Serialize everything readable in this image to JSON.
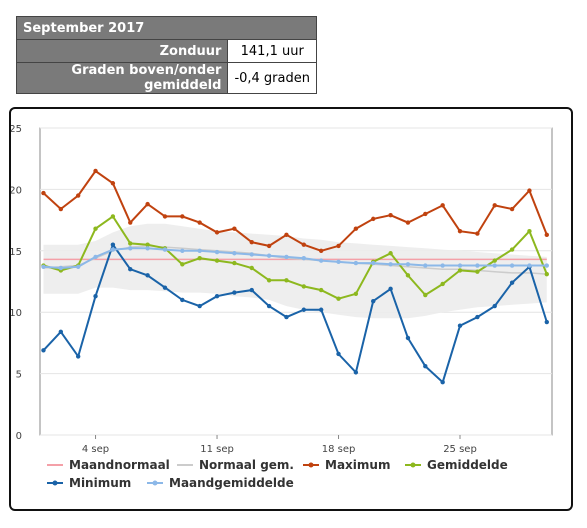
{
  "summary": {
    "title": "September 2017",
    "rows": [
      {
        "label": "Zonduur",
        "value": "141,1 uur"
      },
      {
        "label": "Graden boven/onder gemiddeld",
        "value": "-0,4 graden"
      }
    ]
  },
  "chart_data": {
    "type": "line",
    "title": "",
    "xlabel": "",
    "ylabel": "",
    "ylim": [
      0,
      25
    ],
    "yticks": [
      0,
      5,
      10,
      15,
      20,
      25
    ],
    "x": [
      1,
      2,
      3,
      4,
      5,
      6,
      7,
      8,
      9,
      10,
      11,
      12,
      13,
      14,
      15,
      16,
      17,
      18,
      19,
      20,
      21,
      22,
      23,
      24,
      25,
      26,
      27,
      28,
      29,
      30
    ],
    "xticks": [
      {
        "day": 4,
        "label": "4 sep"
      },
      {
        "day": 11,
        "label": "11 sep"
      },
      {
        "day": 18,
        "label": "18 sep"
      },
      {
        "day": 25,
        "label": "25 sep"
      }
    ],
    "grid": true,
    "band": {
      "name": "Normaal gem.",
      "upper": [
        15.5,
        15.5,
        15.5,
        15.8,
        16.5,
        17,
        17.2,
        17.2,
        17.0,
        16.8,
        16.6,
        16.5,
        16.4,
        16.3,
        16.2,
        16.0,
        15.9,
        15.7,
        15.6,
        15.5,
        15.4,
        15.3,
        15.2,
        15.1,
        15.0,
        14.9,
        14.8,
        14.7,
        14.6,
        14.5
      ],
      "lower": [
        11.5,
        11.5,
        11.5,
        12.0,
        12.0,
        11.8,
        11.8,
        11.7,
        11.6,
        11.6,
        11.5,
        11.3,
        11.2,
        11.0,
        10.5,
        10.2,
        10.0,
        9.8,
        9.6,
        9.5,
        9.5,
        9.5,
        9.7,
        10.0,
        10.2,
        10.4,
        10.5,
        10.6,
        10.7,
        10.8
      ]
    },
    "series": [
      {
        "name": "Maandnormaal",
        "color": "#f4a0a8",
        "values": [
          14.3,
          14.3,
          14.3,
          14.3,
          14.3,
          14.3,
          14.3,
          14.3,
          14.3,
          14.3,
          14.3,
          14.3,
          14.3,
          14.3,
          14.3,
          14.3,
          14.3,
          14.3,
          14.3,
          14.3,
          14.3,
          14.3,
          14.3,
          14.3,
          14.3,
          14.3,
          14.3,
          14.3,
          14.3,
          14.3
        ],
        "markers": false
      },
      {
        "name": "Normaal gem.",
        "color": "#cccccc",
        "values": [
          13.6,
          13.7,
          13.8,
          14.4,
          15.0,
          15.3,
          15.4,
          15.3,
          15.2,
          15.1,
          15.0,
          14.9,
          14.8,
          14.6,
          14.4,
          14.3,
          14.2,
          14.1,
          14.0,
          13.9,
          13.8,
          13.7,
          13.6,
          13.5,
          13.5,
          13.4,
          13.3,
          13.2,
          13.2,
          13.1
        ],
        "markers": false
      },
      {
        "name": "Maximum",
        "color": "#c0420f",
        "values": [
          19.7,
          18.4,
          19.5,
          21.5,
          20.5,
          17.3,
          18.8,
          17.8,
          17.8,
          17.3,
          16.5,
          16.8,
          15.7,
          15.4,
          16.3,
          15.5,
          15.0,
          15.4,
          16.8,
          17.6,
          17.9,
          17.3,
          18.0,
          18.7,
          16.6,
          16.4,
          18.7,
          18.4,
          19.9,
          16.3
        ],
        "markers": true
      },
      {
        "name": "Gemiddelde",
        "color": "#8db81e",
        "values": [
          13.8,
          13.4,
          13.8,
          16.8,
          17.8,
          15.6,
          15.5,
          15.2,
          13.9,
          14.4,
          14.2,
          14.0,
          13.6,
          12.6,
          12.6,
          12.1,
          11.8,
          11.1,
          11.5,
          14.1,
          14.8,
          13.0,
          11.4,
          12.3,
          13.4,
          13.3,
          14.2,
          15.1,
          16.6,
          13.1
        ],
        "markers": true
      },
      {
        "name": "Minimum",
        "color": "#1a63a8",
        "values": [
          6.9,
          8.4,
          6.4,
          11.3,
          15.5,
          13.5,
          13.0,
          12.0,
          11.0,
          10.5,
          11.3,
          11.6,
          11.8,
          10.5,
          9.6,
          10.2,
          10.2,
          6.6,
          5.1,
          10.9,
          11.9,
          7.9,
          5.6,
          4.3,
          8.9,
          9.6,
          10.5,
          12.4,
          13.7,
          9.2
        ],
        "markers": true
      },
      {
        "name": "Maandgemiddelde",
        "color": "#8cb8e8",
        "values": [
          13.7,
          13.6,
          13.7,
          14.5,
          15.1,
          15.2,
          15.2,
          15.1,
          15.0,
          15.0,
          14.9,
          14.8,
          14.7,
          14.6,
          14.5,
          14.4,
          14.2,
          14.1,
          14.0,
          14.0,
          13.9,
          13.9,
          13.8,
          13.8,
          13.8,
          13.8,
          13.8,
          13.8,
          13.8,
          13.8
        ],
        "markers": true
      }
    ],
    "legend": {
      "position": "bottom",
      "items": [
        "Maandnormaal",
        "Normaal gem.",
        "Maximum",
        "Gemiddelde",
        "Minimum",
        "Maandgemiddelde"
      ]
    }
  }
}
